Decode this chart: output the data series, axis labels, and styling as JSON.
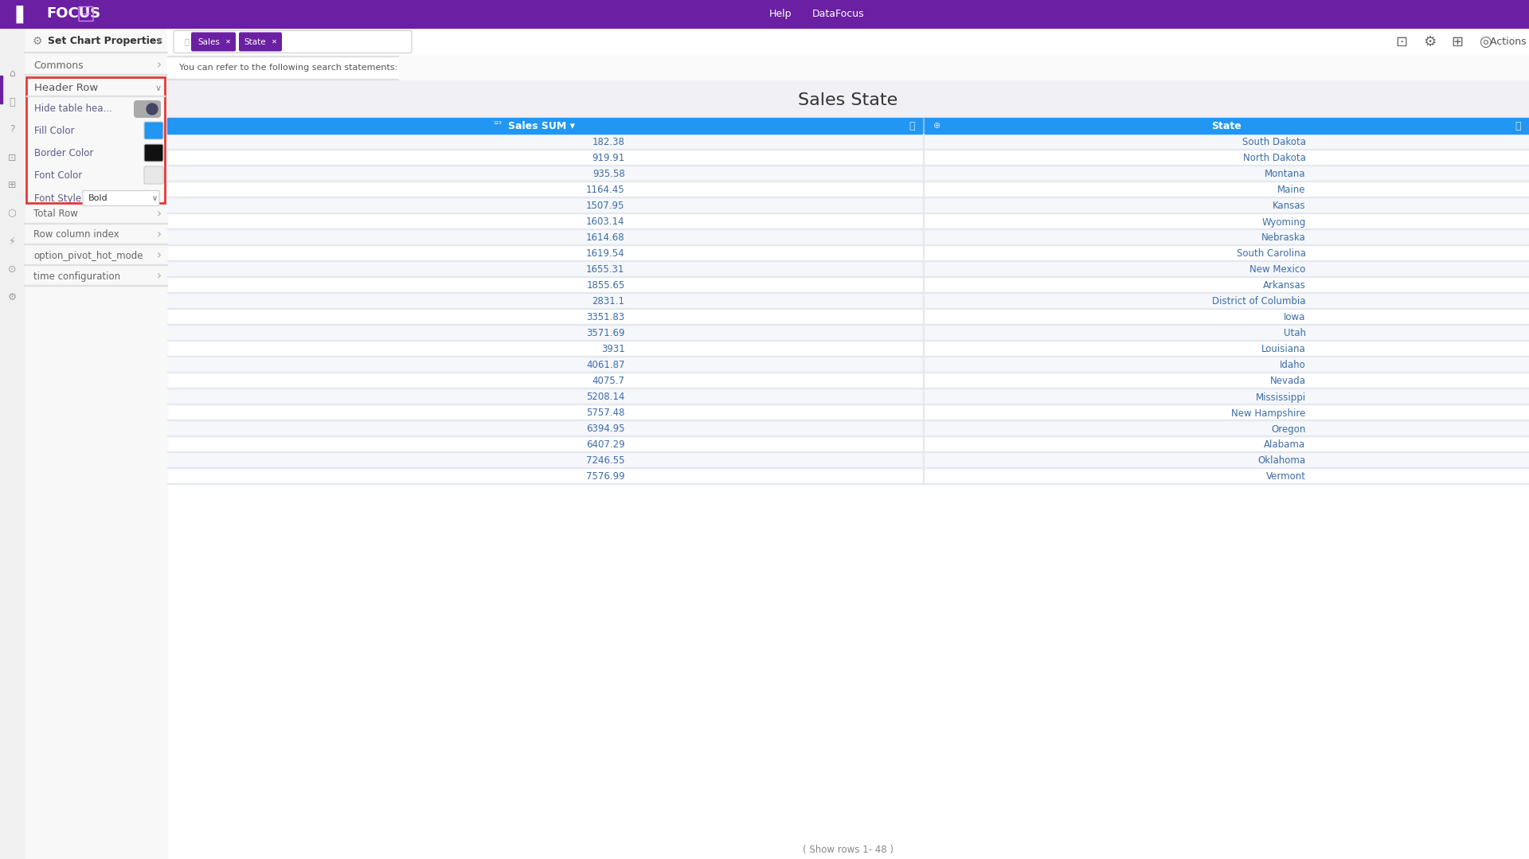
{
  "title": "Sales State",
  "figsize": [
    19.2,
    10.79
  ],
  "dpi": 100,
  "bg_color": "#f0f0f5",
  "top_bar_color": "#6b1fa2",
  "header_row_bg": "#2196f3",
  "header_row_text_color": "#ffffff",
  "table_text_color": "#3c6ca8",
  "table_bg_color": "#ffffff",
  "table_alt_bg": "#f5f7fb",
  "sales_data": [
    182.38,
    919.91,
    935.58,
    1164.45,
    1507.95,
    1603.14,
    1614.68,
    1619.54,
    1655.31,
    1855.65,
    2831.1,
    3351.83,
    3571.69,
    3931,
    4061.87,
    4075.7,
    5208.14,
    5757.48,
    6394.95,
    6407.29,
    7246.55,
    7576.99
  ],
  "state_data": [
    "South Dakota",
    "North Dakota",
    "Montana",
    "Maine",
    "Kansas",
    "Wyoming",
    "Nebraska",
    "South Carolina",
    "New Mexico",
    "Arkansas",
    "District of Columbia",
    "Iowa",
    "Utah",
    "Louisiana",
    "Idaho",
    "Nevada",
    "Mississippi",
    "New Hampshire",
    "Oregon",
    "Alabama",
    "Oklahoma",
    "Vermont"
  ],
  "col1_header": "Sales SUM",
  "col2_header": "State",
  "red_border_color": "#e53935",
  "purple_tag_color": "#6b1fa2",
  "panel_bg": "#f8f8f8",
  "divider_color": "#e0e0e0",
  "menu_text_color": "#666666",
  "hr_label_color": "#5c5c8a",
  "toggle_bg": "#aaaaaa",
  "toggle_knob": "#444466",
  "fill_color_swatch": "#2196f3",
  "border_color_swatch": "#111111",
  "font_color_swatch": "#e8e8e8",
  "row_sep_color": "#e5e8ef",
  "pagination_text": "( Show rows 1- 48 )",
  "hint_text": "You can refer to the following search statements:"
}
